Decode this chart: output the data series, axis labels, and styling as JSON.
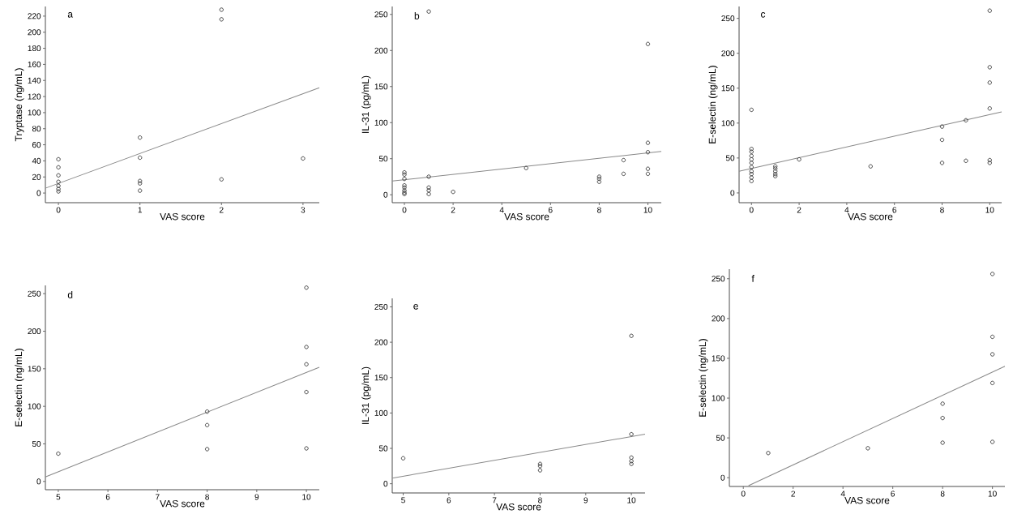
{
  "chart_data": [
    {
      "type": "scatter",
      "xlabel": "VAS score",
      "ylabel": "Tryptase (ng/mL)",
      "annotations": [
        "a"
      ],
      "marker": "circle",
      "xlim": [
        -0.16,
        3.2
      ],
      "ylim": [
        -12,
        232
      ],
      "xticks": [
        0,
        1,
        2,
        3
      ],
      "yticks": [
        0,
        20,
        40,
        60,
        80,
        100,
        120,
        140,
        160,
        180,
        200,
        220
      ],
      "series": [
        {
          "color": "#333333",
          "x": [
            0,
            0,
            0,
            0,
            0,
            0,
            0,
            1,
            1,
            1,
            1,
            1,
            2,
            2,
            2,
            3
          ],
          "values": [
            42,
            32,
            22,
            14,
            9,
            5,
            2,
            69,
            44,
            15,
            12,
            3,
            228,
            216,
            17,
            43
          ]
        },
        {
          "type": "line",
          "marker": "none",
          "color": "#888888",
          "x": [
            -0.16,
            3.2
          ],
          "values": [
            6,
            131
          ]
        }
      ]
    },
    {
      "type": "scatter",
      "xlabel": "VAS score",
      "ylabel": "IL-31 (pg/mL)",
      "annotations": [
        "b"
      ],
      "marker": "circle",
      "xlim": [
        -0.5,
        10.55
      ],
      "ylim": [
        -11,
        261
      ],
      "xticks": [
        0,
        2,
        4,
        6,
        8,
        10
      ],
      "yticks": [
        0,
        50,
        100,
        150,
        200,
        250
      ],
      "series": [
        {
          "color": "#333333",
          "x": [
            0,
            0,
            0,
            0,
            0,
            0,
            0,
            0,
            1,
            1,
            1,
            1,
            1,
            2,
            5,
            8,
            8,
            8,
            9,
            9,
            10,
            10,
            10,
            10,
            10
          ],
          "values": [
            31,
            28,
            22,
            13,
            10,
            6,
            3,
            1,
            254,
            25,
            10,
            6,
            1,
            4,
            37,
            25,
            22,
            18,
            48,
            29,
            209,
            72,
            59,
            36,
            29
          ]
        },
        {
          "type": "line",
          "marker": "none",
          "color": "#888888",
          "x": [
            -0.5,
            10.55
          ],
          "values": [
            19,
            60
          ]
        }
      ]
    },
    {
      "type": "scatter",
      "xlabel": "VAS score",
      "ylabel": "E-selectin (ng/mL)",
      "annotations": [
        "c"
      ],
      "marker": "circle",
      "xlim": [
        -0.52,
        10.5
      ],
      "ylim": [
        -14,
        267
      ],
      "xticks": [
        0,
        2,
        4,
        6,
        8,
        10
      ],
      "yticks": [
        0,
        50,
        100,
        150,
        200,
        250
      ],
      "series": [
        {
          "color": "#333333",
          "x": [
            0,
            0,
            0,
            0,
            0,
            0,
            0,
            0,
            0,
            0,
            0,
            1,
            1,
            1,
            1,
            1,
            2,
            5,
            8,
            8,
            8,
            9,
            9,
            10,
            10,
            10,
            10,
            10,
            10
          ],
          "values": [
            119,
            63,
            59,
            53,
            48,
            43,
            37,
            31,
            27,
            22,
            17,
            38,
            35,
            31,
            27,
            24,
            48,
            38,
            95,
            76,
            43,
            104,
            46,
            261,
            180,
            158,
            121,
            47,
            43
          ]
        },
        {
          "type": "line",
          "marker": "none",
          "color": "#888888",
          "x": [
            -0.52,
            10.5
          ],
          "values": [
            31,
            116
          ]
        }
      ]
    },
    {
      "type": "scatter",
      "xlabel": "VAS score",
      "ylabel": "E-selectin (ng/mL)",
      "annotations": [
        "d"
      ],
      "marker": "circle",
      "xlim": [
        4.74,
        10.26
      ],
      "ylim": [
        -11,
        261
      ],
      "xticks": [
        5,
        6,
        7,
        8,
        9,
        10
      ],
      "yticks": [
        0,
        50,
        100,
        150,
        200,
        250
      ],
      "series": [
        {
          "color": "#333333",
          "x": [
            5,
            8,
            8,
            8,
            10,
            10,
            10,
            10,
            10
          ],
          "values": [
            37,
            93,
            75,
            43,
            258,
            179,
            156,
            119,
            44
          ]
        },
        {
          "type": "line",
          "marker": "none",
          "color": "#888888",
          "x": [
            4.74,
            10.26
          ],
          "values": [
            6,
            152
          ]
        }
      ]
    },
    {
      "type": "scatter",
      "xlabel": "VAS score",
      "ylabel": "IL-31 (pg/mL)",
      "annotations": [
        "e"
      ],
      "marker": "circle",
      "xlim": [
        4.76,
        10.3
      ],
      "ylim": [
        -13,
        262
      ],
      "xticks": [
        5,
        6,
        7,
        8,
        9,
        10
      ],
      "yticks": [
        0,
        50,
        100,
        150,
        200,
        250
      ],
      "series": [
        {
          "color": "#333333",
          "x": [
            5,
            8,
            8,
            8,
            10,
            10,
            10,
            10,
            10
          ],
          "values": [
            36,
            28,
            25,
            19,
            209,
            70,
            37,
            32,
            28
          ]
        },
        {
          "type": "line",
          "marker": "none",
          "color": "#888888",
          "x": [
            4.76,
            10.3
          ],
          "values": [
            8,
            70
          ]
        }
      ]
    },
    {
      "type": "scatter",
      "xlabel": "VAS score",
      "ylabel": "E-selectin (ng/mL)",
      "annotations": [
        "f"
      ],
      "marker": "circle",
      "xlim": [
        -0.56,
        10.5
      ],
      "ylim": [
        -11,
        262
      ],
      "xticks": [
        0,
        2,
        4,
        6,
        8,
        10
      ],
      "yticks": [
        0,
        50,
        100,
        150,
        200,
        250
      ],
      "series": [
        {
          "color": "#333333",
          "x": [
            1,
            5,
            8,
            8,
            8,
            10,
            10,
            10,
            10,
            10
          ],
          "values": [
            31,
            37,
            93,
            75,
            44,
            256,
            177,
            155,
            119,
            45
          ]
        },
        {
          "type": "line",
          "marker": "none",
          "color": "#888888",
          "x": [
            0.21,
            10.5
          ],
          "values": [
            -10,
            140
          ]
        }
      ]
    }
  ]
}
